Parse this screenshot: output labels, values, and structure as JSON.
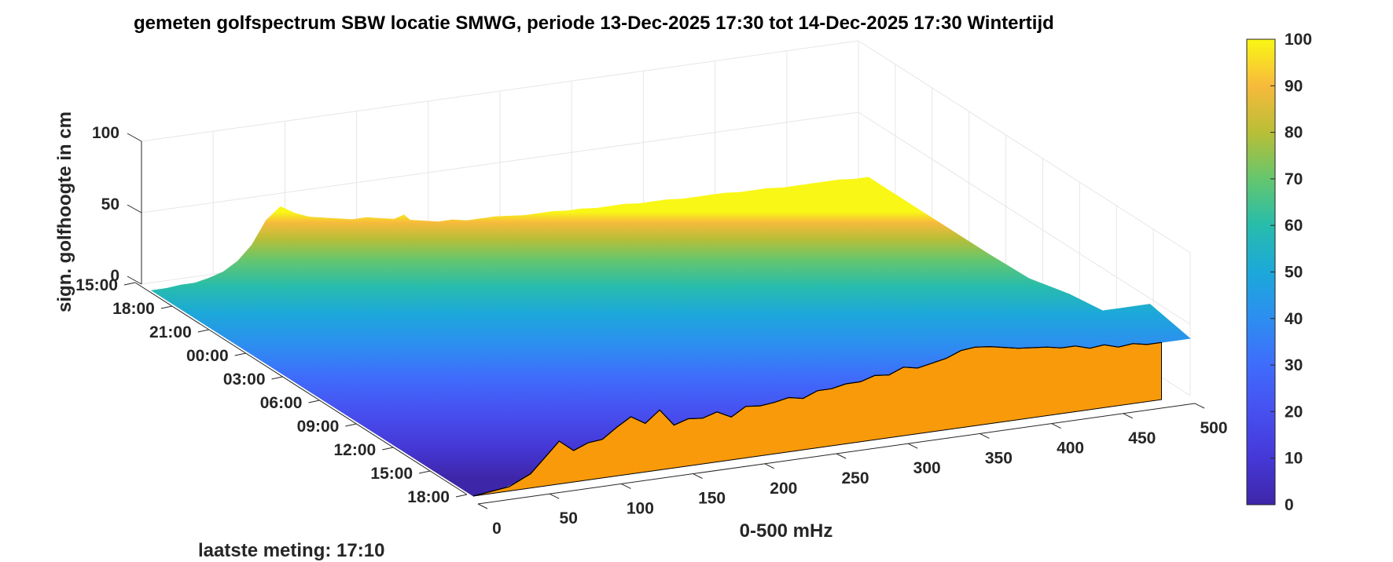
{
  "title": "gemeten golfspectrum SBW locatie SMWG, periode 13-Dec-2025 17:30 tot 14-Dec-2025 17:30 Wintertijd",
  "footer_note": "laatste meting: 17:10",
  "colors": {
    "surface_front": "#f99a0a",
    "grid": "#e6e6e6",
    "axis": "#262626"
  },
  "chart_data": {
    "type": "surface",
    "title": "gemeten golfspectrum SBW locatie SMWG, periode 13-Dec-2025 17:30 tot 14-Dec-2025 17:30 Wintertijd",
    "xlabel": "0-500 mHz",
    "ylabel": "",
    "zlabel": "sign. golfhoogte in cm",
    "x_ticks": [
      "0",
      "50",
      "100",
      "150",
      "200",
      "250",
      "300",
      "350",
      "400",
      "450",
      "500"
    ],
    "y_ticks": [
      "15:00",
      "18:00",
      "21:00",
      "00:00",
      "03:00",
      "06:00",
      "09:00",
      "12:00",
      "15:00",
      "18:00"
    ],
    "z_ticks": [
      "0",
      "50",
      "100"
    ],
    "xlim": [
      0,
      500
    ],
    "zlim": [
      0,
      100
    ],
    "colorbar": {
      "ticks": [
        "0",
        "10",
        "20",
        "30",
        "40",
        "50",
        "60",
        "70",
        "80",
        "90",
        "100"
      ],
      "range": [
        0,
        100
      ],
      "colormap": "parula"
    },
    "latest_spectrum": {
      "x": [
        0,
        25,
        40,
        50,
        60,
        70,
        80,
        90,
        100,
        110,
        120,
        130,
        140,
        150,
        160,
        170,
        180,
        190,
        200,
        210,
        220,
        230,
        240,
        250,
        260,
        270,
        280,
        290,
        300,
        310,
        320,
        330,
        340,
        350,
        360,
        370,
        380,
        390,
        400,
        410,
        420,
        430,
        440,
        450,
        460,
        470,
        480
      ],
      "z": [
        0,
        3,
        10,
        20,
        30,
        22,
        26,
        27,
        34,
        40,
        34,
        42,
        30,
        33,
        32,
        35,
        30,
        36,
        35,
        36,
        38,
        36,
        40,
        40,
        42,
        42,
        45,
        44,
        48,
        46,
        48,
        50,
        54,
        55,
        54,
        52,
        50,
        49,
        48,
        46,
        46,
        43,
        44,
        41,
        42,
        40,
        40
      ]
    },
    "time_series": [
      {
        "time": "13-Dec 18:00",
        "z": [
          0,
          0,
          1,
          1,
          3,
          6,
          12,
          22,
          38,
          46,
          40,
          36,
          34,
          32,
          30,
          30,
          28,
          26,
          24,
          22,
          20,
          20,
          18,
          18,
          18,
          17,
          16,
          16,
          16,
          15,
          15,
          14,
          14,
          14,
          13,
          13,
          13,
          12,
          12,
          12,
          12,
          11,
          11,
          11,
          10,
          10,
          10,
          10,
          10,
          9,
          9
        ]
      },
      {
        "time": "13-Dec 21:00",
        "z": [
          0,
          0,
          1,
          1,
          3,
          6,
          10,
          18,
          30,
          38,
          42,
          44,
          42,
          38,
          34,
          32,
          28,
          26,
          24,
          22,
          20,
          19,
          18,
          17,
          17,
          16,
          16,
          15,
          15,
          14,
          14,
          14,
          13,
          13,
          13,
          12,
          12,
          12,
          11,
          11,
          11,
          11,
          10,
          10,
          10,
          10,
          9,
          9,
          9,
          9,
          9
        ]
      },
      {
        "time": "14-Dec 00:00",
        "z": [
          0,
          0,
          1,
          1,
          2,
          4,
          8,
          14,
          22,
          34,
          48,
          60,
          72,
          62,
          48,
          40,
          32,
          28,
          26,
          24,
          22,
          20,
          19,
          18,
          17,
          16,
          16,
          15,
          15,
          14,
          14,
          13,
          13,
          13,
          12,
          12,
          12,
          11,
          11,
          11,
          11,
          10,
          10,
          10,
          10,
          9,
          9,
          9,
          9,
          9,
          9
        ]
      },
      {
        "time": "14-Dec 03:00",
        "z": [
          0,
          0,
          1,
          1,
          2,
          4,
          7,
          12,
          18,
          26,
          34,
          42,
          50,
          56,
          52,
          46,
          40,
          34,
          30,
          26,
          24,
          22,
          20,
          19,
          18,
          17,
          16,
          16,
          15,
          15,
          14,
          14,
          13,
          13,
          12,
          12,
          12,
          11,
          11,
          11,
          11,
          10,
          10,
          10,
          10,
          9,
          9,
          9,
          9,
          9,
          9
        ]
      },
      {
        "time": "14-Dec 06:00",
        "z": [
          0,
          0,
          1,
          1,
          2,
          3,
          6,
          10,
          16,
          22,
          28,
          34,
          40,
          48,
          58,
          70,
          78,
          66,
          52,
          40,
          34,
          30,
          27,
          24,
          22,
          21,
          20,
          19,
          18,
          17,
          16,
          16,
          15,
          15,
          14,
          14,
          14,
          13,
          13,
          13,
          12,
          12,
          12,
          12,
          11,
          11,
          11,
          11,
          11,
          10,
          10
        ]
      },
      {
        "time": "14-Dec 09:00",
        "z": [
          0,
          0,
          1,
          1,
          2,
          3,
          5,
          8,
          12,
          18,
          24,
          30,
          36,
          44,
          52,
          62,
          72,
          86,
          100,
          86,
          60,
          44,
          36,
          32,
          30,
          28,
          27,
          26,
          25,
          24,
          24,
          23,
          22,
          22,
          21,
          21,
          20,
          20,
          20,
          19,
          19,
          19,
          18,
          18,
          18,
          18,
          17,
          17,
          17,
          17,
          17
        ]
      },
      {
        "time": "14-Dec 12:00",
        "z": [
          0,
          0,
          1,
          1,
          2,
          3,
          5,
          8,
          12,
          16,
          22,
          28,
          34,
          40,
          46,
          52,
          58,
          56,
          50,
          44,
          38,
          34,
          32,
          30,
          29,
          28,
          28,
          27,
          27,
          26,
          26,
          26,
          25,
          25,
          25,
          24,
          24,
          24,
          24,
          23,
          23,
          23,
          23,
          22,
          22,
          22,
          22,
          22,
          21,
          21,
          21
        ]
      },
      {
        "time": "14-Dec 15:00",
        "z": [
          0,
          0,
          1,
          1,
          2,
          4,
          8,
          14,
          22,
          32,
          40,
          42,
          38,
          36,
          40,
          46,
          50,
          44,
          40,
          38,
          38,
          36,
          36,
          36,
          37,
          38,
          38,
          38,
          40,
          40,
          40,
          41,
          42,
          42,
          43,
          43,
          44,
          44,
          44,
          45,
          45,
          45,
          46,
          46,
          46,
          46,
          46,
          46,
          46,
          46,
          46
        ]
      }
    ]
  }
}
